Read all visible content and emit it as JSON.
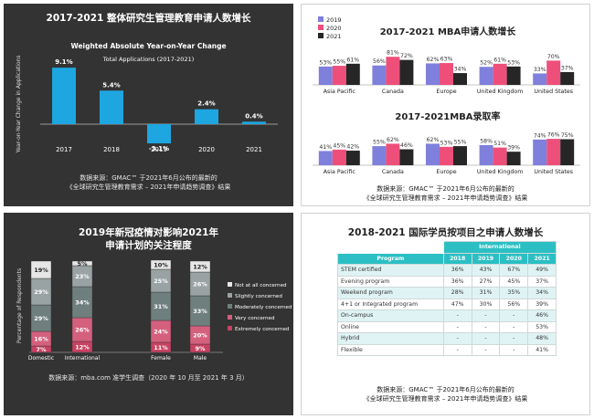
{
  "chart_data": [
    {
      "type": "bar",
      "title": "2017-2021 整体研究生管理教育申请人数增长",
      "subtitle": "Weighted Absolute Year-on-Year Change",
      "subtitle2": "Total Applications (2017-2021)",
      "ylabel": "Year-on-Year Change in Applications",
      "categories": [
        "2017",
        "2018",
        "2019",
        "2020",
        "2021"
      ],
      "values": [
        9.1,
        5.4,
        -3.1,
        2.4,
        0.4
      ],
      "value_labels": [
        "9.1%",
        "5.4%",
        "-3.1%",
        "2.4%",
        "0.4%"
      ],
      "ylim": [
        -5,
        11
      ],
      "source": [
        "数据来源：GMAC™ 于2021年6月公布的最新的",
        "《全球研究生管理教育需求 – 2021年申请趋势调查》结果"
      ],
      "colors": {
        "bar": "#1ea6e0",
        "bg": "#333333"
      }
    },
    {
      "type": "bar",
      "title": "2017-2021 MBA申请人数增长",
      "categories": [
        "Asia Pacific",
        "Canada",
        "Europe",
        "United Kingdom",
        "United States"
      ],
      "series": [
        {
          "name": "2019",
          "values": [
            53,
            56,
            62,
            52,
            33
          ],
          "labels": [
            "53%",
            "56%",
            "62%",
            "52%",
            "33%"
          ]
        },
        {
          "name": "2020",
          "values": [
            55,
            81,
            63,
            61,
            70
          ],
          "labels": [
            "55%",
            "81%",
            "63%",
            "61%",
            "70%"
          ]
        },
        {
          "name": "2021",
          "values": [
            61,
            72,
            34,
            53,
            37
          ],
          "labels": [
            "61%",
            "72%",
            "34%",
            "53%",
            "37%"
          ]
        }
      ],
      "ylim": [
        0,
        90
      ],
      "legend": "top-left",
      "colors": {
        "2019": "#7f7fdc",
        "2020": "#ee4f7a",
        "2021": "#262626"
      }
    },
    {
      "type": "bar",
      "title": "2017-2021MBA录取率",
      "categories": [
        "Asia Pacific",
        "Canada",
        "Europe",
        "United Kingdom",
        "United States"
      ],
      "series": [
        {
          "name": "2019",
          "values": [
            41,
            55,
            62,
            58,
            74
          ],
          "labels": [
            "41%",
            "55%",
            "62%",
            "58%",
            "74%"
          ]
        },
        {
          "name": "2020",
          "values": [
            45,
            62,
            53,
            51,
            76
          ],
          "labels": [
            "45%",
            "62%",
            "53%",
            "51%",
            "76%"
          ]
        },
        {
          "name": "2021",
          "values": [
            42,
            46,
            55,
            39,
            75
          ],
          "labels": [
            "42%",
            "46%",
            "55%",
            "39%",
            "75%"
          ]
        }
      ],
      "ylim": [
        0,
        90
      ],
      "source": [
        "数据来源：GMAC™ 于2021年6月公布的最新的",
        "《全球研究生管理教育需求 – 2021年申请趋势调查》结果"
      ]
    },
    {
      "type": "bar",
      "stacked": true,
      "title": "2019年新冠疫情对影响2021年",
      "title2": "申请计划的关注程度",
      "ylabel": "Percentage of Respondents",
      "categories": [
        "Domestic",
        "International",
        "Female",
        "Male"
      ],
      "series": [
        {
          "name": "Extremely concerned",
          "values": [
            7,
            12,
            11,
            9
          ],
          "labels": [
            "7%",
            "12%",
            "11%",
            "9%"
          ]
        },
        {
          "name": "Very concerned",
          "values": [
            16,
            26,
            24,
            20
          ],
          "labels": [
            "16%",
            "26%",
            "24%",
            "20%"
          ]
        },
        {
          "name": "Moderately concerned",
          "values": [
            29,
            34,
            31,
            33
          ],
          "labels": [
            "29%",
            "34%",
            "31%",
            "33%"
          ]
        },
        {
          "name": "Slightly concerned",
          "values": [
            29,
            23,
            25,
            26
          ],
          "labels": [
            "29%",
            "23%",
            "25%",
            "26%"
          ]
        },
        {
          "name": "Not at all concerned",
          "values": [
            19,
            5,
            10,
            12
          ],
          "labels": [
            "19%",
            "5%",
            "10%",
            "12%"
          ]
        }
      ],
      "ylim": [
        0,
        100
      ],
      "legend": "right",
      "colors": {
        "Extremely concerned": "#c84262",
        "Very concerned": "#d4607e",
        "Moderately concerned": "#6f7f7e",
        "Slightly concerned": "#9aa3a3",
        "Not at all concerned": "#e6e6e6"
      },
      "source": [
        "数据来源：mba.com 准学生调查（2020 年 10 月至 2021 年 3 月）"
      ]
    },
    {
      "type": "table",
      "title": "2018-2021 国际学员按项目之申请人数增长",
      "group_header": "International",
      "columns": [
        "Program",
        "2018",
        "2019",
        "2020",
        "2021"
      ],
      "rows": [
        [
          "STEM certified",
          "36%",
          "43%",
          "67%",
          "49%"
        ],
        [
          "Evening program",
          "36%",
          "27%",
          "45%",
          "37%"
        ],
        [
          "Weekend program",
          "28%",
          "31%",
          "35%",
          "34%"
        ],
        [
          "4+1 or Integrated program",
          "47%",
          "30%",
          "56%",
          "39%"
        ],
        [
          "On-campus",
          "-",
          "-",
          "-",
          "46%"
        ],
        [
          "Online",
          "-",
          "-",
          "-",
          "53%"
        ],
        [
          "Hybrid",
          "-",
          "-",
          "-",
          "48%"
        ],
        [
          "Flexible",
          "-",
          "-",
          "-",
          "41%"
        ]
      ],
      "source": [
        "数据来源：GMAC™ 于2021年6月公布的最新的",
        "《全球研究生管理教育需求 – 2021年申请趋势调查》结果"
      ],
      "colors": {
        "header": "#2bbfc4",
        "alt_row": "#dff3f4"
      }
    }
  ]
}
